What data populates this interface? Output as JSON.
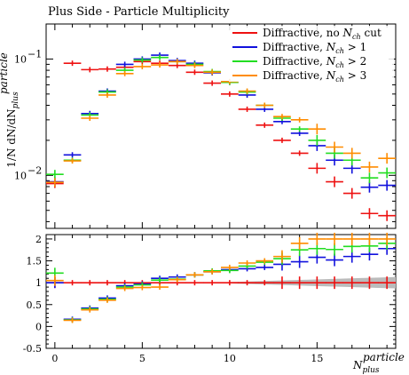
{
  "chart_data": {
    "type": "scatter",
    "title": "Plus Side - Particle Multiplicity",
    "ylabel": "1/N dN/dN",
    "ylabel_sup": "particle",
    "ylabel_sub": "plus",
    "xlabel": "N",
    "xlabel_sup": "particle",
    "xlabel_sub": "plus",
    "x_ticks": [
      "0",
      "5",
      "10",
      "15"
    ],
    "y_ticks_main": [
      "10",
      "10"
    ],
    "y_ticks_main_exp": [
      "−1",
      "−2"
    ],
    "y_ticks_ratio": [
      "2",
      "1.5",
      "1",
      "0.5",
      "0",
      "-0.5"
    ],
    "xlim": [
      -0.5,
      19.5
    ],
    "ylim_main": [
      0.0035,
      0.2
    ],
    "ylim_ratio": [
      -0.5,
      2.1
    ],
    "log_y_main": true,
    "legend_position": "top-right",
    "x": [
      0,
      1,
      2,
      3,
      4,
      5,
      6,
      7,
      8,
      9,
      10,
      11,
      12,
      13,
      14,
      15,
      16,
      17,
      18,
      19
    ],
    "series": [
      {
        "name": "Diffractive, no ",
        "name_sym": "N",
        "name_sub": "ch",
        "name_tail": " cut",
        "color": "#ee1111",
        "values": [
          0.0085,
          0.092,
          0.081,
          0.082,
          0.085,
          0.095,
          0.092,
          0.088,
          0.077,
          0.062,
          0.05,
          0.037,
          0.027,
          0.02,
          0.0155,
          0.0115,
          0.0088,
          0.007,
          0.0047,
          0.0045
        ],
        "ratio": [
          1.0,
          1.0,
          1.0,
          1.0,
          1.0,
          1.0,
          1.0,
          1.0,
          1.0,
          1.0,
          1.0,
          1.0,
          1.0,
          1.0,
          1.0,
          1.0,
          1.0,
          1.0,
          1.0,
          1.0
        ]
      },
      {
        "name": "Diffractive, ",
        "name_sym": "N",
        "name_sub": "ch",
        "name_tail": " > 1",
        "color": "#1111dd",
        "values": [
          0.0088,
          0.015,
          0.034,
          0.053,
          0.09,
          0.1,
          0.108,
          0.097,
          0.092,
          0.076,
          0.063,
          0.049,
          0.037,
          0.029,
          0.023,
          0.018,
          0.0135,
          0.0115,
          0.0079,
          0.0082
        ],
        "ratio": [
          1.0,
          0.165,
          0.42,
          0.65,
          0.93,
          0.97,
          1.1,
          1.13,
          1.18,
          1.25,
          1.3,
          1.32,
          1.35,
          1.42,
          1.48,
          1.58,
          1.52,
          1.6,
          1.65,
          1.78
        ]
      },
      {
        "name": "Diffractive, ",
        "name_sym": "N",
        "name_sub": "ch",
        "name_tail": " > 2",
        "color": "#22dd22",
        "values": [
          0.0102,
          0.0135,
          0.033,
          0.052,
          0.08,
          0.098,
          0.103,
          0.095,
          0.09,
          0.078,
          0.063,
          0.052,
          0.04,
          0.031,
          0.025,
          0.02,
          0.0155,
          0.0135,
          0.0095,
          0.0105
        ],
        "ratio": [
          1.22,
          0.15,
          0.4,
          0.62,
          0.9,
          0.95,
          1.06,
          1.08,
          1.18,
          1.27,
          1.28,
          1.38,
          1.47,
          1.55,
          1.75,
          1.78,
          1.76,
          1.83,
          1.84,
          1.9
        ]
      },
      {
        "name": "Diffractive, ",
        "name_sym": "N",
        "name_sub": "ch",
        "name_tail": " > 3",
        "color": "#ff8c00",
        "values": [
          0.0087,
          0.0133,
          0.031,
          0.049,
          0.075,
          0.086,
          0.089,
          0.095,
          0.088,
          0.077,
          0.064,
          0.053,
          0.04,
          0.032,
          0.03,
          0.025,
          0.0175,
          0.0155,
          0.0118,
          0.014
        ],
        "ratio": [
          1.05,
          0.14,
          0.38,
          0.6,
          0.87,
          0.89,
          0.9,
          1.07,
          1.18,
          1.25,
          1.35,
          1.45,
          1.5,
          1.6,
          1.9,
          2.0,
          2.0,
          2.0,
          2.0,
          2.0
        ]
      }
    ]
  }
}
